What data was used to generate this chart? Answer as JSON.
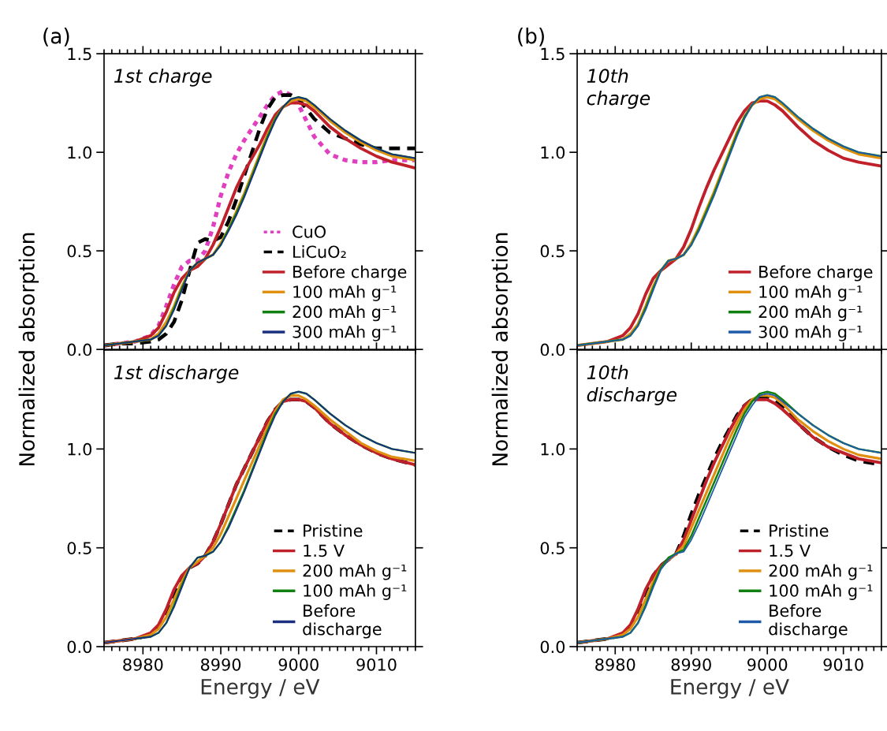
{
  "chart_data": [
    {
      "type": "line",
      "title": "(a)",
      "ylabel": "Normalized absorption",
      "annotations": [
        "1st charge"
      ],
      "legend": "bottom right",
      "tick_labels": "y",
      "xlim": [
        8975,
        9015
      ],
      "xticks": [
        8980,
        8990,
        9000,
        9010
      ],
      "ylim": [
        0,
        1.5
      ],
      "yticks": [
        {
          "value": 0,
          "label": "0.0"
        },
        {
          "value": 0.5,
          "label": "0.5"
        },
        {
          "value": 1.0,
          "label": "1.0"
        },
        {
          "value": 1.5,
          "label": "1.5"
        }
      ],
      "x": [
        8975,
        8977,
        8979,
        8981,
        8982,
        8983,
        8984,
        8985,
        8986,
        8987,
        8988,
        8989,
        8990,
        8991,
        8992,
        8993,
        8994,
        8995,
        8996,
        8997,
        8998,
        8999,
        9000,
        9001,
        9002,
        9004,
        9006,
        9008,
        9010,
        9012,
        9015
      ],
      "series": [
        {
          "name": "CuO",
          "color": "#e040c0",
          "line_style": "dotted",
          "values": [
            0.02,
            0.03,
            0.04,
            0.07,
            0.12,
            0.22,
            0.33,
            0.42,
            0.45,
            0.45,
            0.5,
            0.62,
            0.78,
            0.9,
            0.99,
            1.06,
            1.12,
            1.18,
            1.24,
            1.29,
            1.31,
            1.29,
            1.24,
            1.16,
            1.08,
            0.99,
            0.96,
            0.95,
            0.95,
            0.96,
            0.96
          ]
        },
        {
          "name": "LiCuO₂",
          "color": "#000000",
          "line_style": "dashed",
          "values": [
            0.02,
            0.03,
            0.03,
            0.04,
            0.05,
            0.08,
            0.14,
            0.25,
            0.4,
            0.54,
            0.56,
            0.55,
            0.57,
            0.65,
            0.76,
            0.88,
            1.0,
            1.12,
            1.22,
            1.28,
            1.29,
            1.29,
            1.27,
            1.22,
            1.17,
            1.1,
            1.07,
            1.04,
            1.02,
            1.02,
            1.02
          ]
        },
        {
          "name": "Before charge",
          "color": "#c0202a",
          "values": [
            0.02,
            0.03,
            0.04,
            0.07,
            0.11,
            0.19,
            0.29,
            0.36,
            0.4,
            0.42,
            0.46,
            0.53,
            0.62,
            0.72,
            0.82,
            0.9,
            0.97,
            1.04,
            1.12,
            1.19,
            1.23,
            1.25,
            1.25,
            1.24,
            1.21,
            1.13,
            1.07,
            1.02,
            0.98,
            0.95,
            0.92
          ]
        },
        {
          "name": "100 mAh g⁻¹",
          "color": "#e09010",
          "values": [
            0.02,
            0.03,
            0.04,
            0.05,
            0.08,
            0.14,
            0.22,
            0.32,
            0.4,
            0.44,
            0.46,
            0.48,
            0.54,
            0.61,
            0.7,
            0.79,
            0.89,
            0.99,
            1.09,
            1.17,
            1.23,
            1.26,
            1.27,
            1.26,
            1.23,
            1.16,
            1.1,
            1.05,
            1.01,
            0.98,
            0.96
          ]
        },
        {
          "name": "200 mAh g⁻¹",
          "color": "#108010",
          "values": [
            0.02,
            0.03,
            0.04,
            0.05,
            0.07,
            0.12,
            0.21,
            0.31,
            0.4,
            0.44,
            0.46,
            0.48,
            0.53,
            0.61,
            0.69,
            0.78,
            0.88,
            0.98,
            1.08,
            1.17,
            1.23,
            1.27,
            1.28,
            1.27,
            1.24,
            1.17,
            1.11,
            1.06,
            1.02,
            0.99,
            0.97
          ]
        },
        {
          "name": "300 mAh g⁻¹",
          "color": "#1a2f80",
          "values": [
            0.02,
            0.03,
            0.04,
            0.05,
            0.07,
            0.12,
            0.2,
            0.3,
            0.4,
            0.44,
            0.46,
            0.48,
            0.53,
            0.6,
            0.68,
            0.77,
            0.87,
            0.97,
            1.07,
            1.16,
            1.23,
            1.27,
            1.28,
            1.27,
            1.24,
            1.17,
            1.11,
            1.06,
            1.02,
            0.99,
            0.97
          ]
        }
      ]
    },
    {
      "type": "line",
      "title": "(b)",
      "ylabel": "Normalized absorption",
      "annotations": [
        "10th\ncharge"
      ],
      "legend": "bottom right",
      "tick_labels": "y",
      "xlim": [
        8975,
        9015
      ],
      "xticks": [
        8980,
        8990,
        9000,
        9010
      ],
      "ylim": [
        0,
        1.5
      ],
      "yticks": [
        {
          "value": 0,
          "label": "0.0"
        },
        {
          "value": 0.5,
          "label": "0.5"
        },
        {
          "value": 1.0,
          "label": "1.0"
        },
        {
          "value": 1.5,
          "label": "1.5"
        }
      ],
      "x": [
        8975,
        8977,
        8979,
        8981,
        8982,
        8983,
        8984,
        8985,
        8986,
        8987,
        8988,
        8989,
        8990,
        8991,
        8992,
        8993,
        8994,
        8995,
        8996,
        8997,
        8998,
        8999,
        9000,
        9001,
        9002,
        9004,
        9006,
        9008,
        9010,
        9012,
        9015
      ],
      "series": [
        {
          "name": "Before charge",
          "color": "#c0202a",
          "values": [
            0.02,
            0.03,
            0.04,
            0.07,
            0.11,
            0.18,
            0.28,
            0.36,
            0.4,
            0.43,
            0.46,
            0.52,
            0.61,
            0.72,
            0.82,
            0.91,
            0.99,
            1.07,
            1.15,
            1.21,
            1.25,
            1.26,
            1.26,
            1.24,
            1.21,
            1.13,
            1.06,
            1.01,
            0.97,
            0.95,
            0.93
          ]
        },
        {
          "name": "100 mAh g⁻¹",
          "color": "#e09010",
          "values": [
            0.02,
            0.03,
            0.04,
            0.05,
            0.08,
            0.13,
            0.22,
            0.32,
            0.4,
            0.45,
            0.46,
            0.48,
            0.54,
            0.62,
            0.71,
            0.8,
            0.9,
            1.0,
            1.1,
            1.18,
            1.24,
            1.27,
            1.28,
            1.27,
            1.24,
            1.17,
            1.11,
            1.06,
            1.02,
            0.99,
            0.97
          ]
        },
        {
          "name": "200 mAh g⁻¹",
          "color": "#108010",
          "values": [
            0.02,
            0.03,
            0.04,
            0.05,
            0.07,
            0.12,
            0.21,
            0.31,
            0.4,
            0.45,
            0.46,
            0.48,
            0.53,
            0.61,
            0.7,
            0.79,
            0.89,
            0.99,
            1.09,
            1.18,
            1.24,
            1.28,
            1.29,
            1.28,
            1.25,
            1.18,
            1.12,
            1.07,
            1.03,
            1.0,
            0.98
          ]
        },
        {
          "name": "300 mAh g⁻¹",
          "color": "#1f5aa8",
          "values": [
            0.02,
            0.03,
            0.04,
            0.05,
            0.07,
            0.12,
            0.2,
            0.3,
            0.4,
            0.45,
            0.46,
            0.48,
            0.53,
            0.6,
            0.69,
            0.78,
            0.88,
            0.98,
            1.08,
            1.17,
            1.24,
            1.28,
            1.29,
            1.28,
            1.25,
            1.18,
            1.12,
            1.07,
            1.03,
            1.0,
            0.98
          ]
        }
      ]
    },
    {
      "type": "line",
      "xlabel": "Energy / eV",
      "annotations": [
        "1st discharge"
      ],
      "legend": "bottom right",
      "xlim": [
        8975,
        9015
      ],
      "xticks": [
        8980,
        8990,
        9000,
        9010
      ],
      "ylim": [
        0,
        1.5
      ],
      "yticks": [
        {
          "value": 0,
          "label": "0.0"
        },
        {
          "value": 0.5,
          "label": "0.5"
        },
        {
          "value": 1.0,
          "label": "1.0"
        }
      ],
      "x": [
        8975,
        8977,
        8979,
        8981,
        8982,
        8983,
        8984,
        8985,
        8986,
        8987,
        8988,
        8989,
        8990,
        8991,
        8992,
        8993,
        8994,
        8995,
        8996,
        8997,
        8998,
        8999,
        9000,
        9001,
        9002,
        9004,
        9006,
        9008,
        9010,
        9012,
        9015
      ],
      "series": [
        {
          "name": "Pristine",
          "color": "#000000",
          "line_style": "dashed",
          "values": [
            0.02,
            0.03,
            0.04,
            0.06,
            0.1,
            0.17,
            0.27,
            0.35,
            0.4,
            0.42,
            0.46,
            0.53,
            0.62,
            0.72,
            0.82,
            0.9,
            0.98,
            1.06,
            1.14,
            1.2,
            1.24,
            1.25,
            1.25,
            1.24,
            1.21,
            1.13,
            1.07,
            1.02,
            0.98,
            0.95,
            0.92
          ]
        },
        {
          "name": "1.5 V",
          "color": "#c0202a",
          "values": [
            0.02,
            0.03,
            0.04,
            0.07,
            0.11,
            0.19,
            0.29,
            0.36,
            0.4,
            0.42,
            0.46,
            0.53,
            0.62,
            0.72,
            0.82,
            0.9,
            0.98,
            1.06,
            1.14,
            1.2,
            1.24,
            1.25,
            1.25,
            1.24,
            1.21,
            1.13,
            1.07,
            1.02,
            0.98,
            0.95,
            0.92
          ]
        },
        {
          "name": "200 mAh g⁻¹",
          "color": "#e09010",
          "values": [
            0.02,
            0.03,
            0.04,
            0.06,
            0.09,
            0.15,
            0.24,
            0.33,
            0.4,
            0.43,
            0.46,
            0.5,
            0.57,
            0.66,
            0.75,
            0.84,
            0.93,
            1.02,
            1.11,
            1.19,
            1.25,
            1.27,
            1.27,
            1.25,
            1.22,
            1.15,
            1.09,
            1.03,
            0.99,
            0.96,
            0.94
          ]
        },
        {
          "name": "100 mAh g⁻¹",
          "color": "#108010",
          "values": [
            null,
            null,
            0.04,
            0.05,
            0.07,
            0.12,
            0.21,
            0.31,
            0.4,
            0.45,
            0.46,
            0.48,
            0.53,
            0.61,
            0.7,
            0.79,
            0.89,
            0.99,
            1.09,
            1.18,
            1.24,
            1.28,
            1.29,
            1.28,
            1.25,
            1.18,
            1.12,
            1.07,
            1.03,
            1.0,
            0.98
          ]
        },
        {
          "name": "Before\ndischarge",
          "color": "#1a2f80",
          "values": [
            0.02,
            0.03,
            0.04,
            0.05,
            0.07,
            0.12,
            0.2,
            0.3,
            0.4,
            0.45,
            0.46,
            0.48,
            0.53,
            0.6,
            0.69,
            0.78,
            0.88,
            0.98,
            1.08,
            1.17,
            1.24,
            1.28,
            1.29,
            1.28,
            1.25,
            1.18,
            1.12,
            1.07,
            1.03,
            1.0,
            0.98
          ]
        }
      ]
    },
    {
      "type": "line",
      "xlabel": "Energy / eV",
      "annotations": [
        "10th\ndischarge"
      ],
      "legend": "bottom right",
      "xlim": [
        8975,
        9015
      ],
      "xticks": [
        8980,
        8990,
        9000,
        9010
      ],
      "ylim": [
        0,
        1.5
      ],
      "yticks": [
        {
          "value": 0,
          "label": "0.0"
        },
        {
          "value": 0.5,
          "label": "0.5"
        },
        {
          "value": 1.0,
          "label": "1.0"
        }
      ],
      "x": [
        8975,
        8977,
        8979,
        8981,
        8982,
        8983,
        8984,
        8985,
        8986,
        8987,
        8988,
        8989,
        8990,
        8991,
        8992,
        8993,
        8994,
        8995,
        8996,
        8997,
        8998,
        8999,
        9000,
        9001,
        9002,
        9004,
        9006,
        9008,
        9010,
        9012,
        9015
      ],
      "series": [
        {
          "name": "Pristine",
          "color": "#000000",
          "line_style": "dashed",
          "values": [
            0.02,
            0.03,
            0.04,
            0.06,
            0.1,
            0.18,
            0.28,
            0.36,
            0.41,
            0.44,
            0.47,
            0.56,
            0.67,
            0.77,
            0.86,
            0.95,
            1.03,
            1.1,
            1.17,
            1.22,
            1.25,
            1.26,
            1.26,
            1.24,
            1.21,
            1.13,
            1.06,
            1.01,
            0.97,
            0.94,
            0.92
          ]
        },
        {
          "name": "1.5 V",
          "color": "#c0202a",
          "values": [
            0.02,
            0.03,
            0.04,
            0.07,
            0.11,
            0.19,
            0.29,
            0.36,
            0.41,
            0.44,
            0.47,
            0.54,
            0.64,
            0.74,
            0.84,
            0.93,
            1.01,
            1.09,
            1.16,
            1.22,
            1.25,
            1.25,
            1.25,
            1.23,
            1.2,
            1.13,
            1.06,
            1.01,
            0.98,
            0.95,
            0.93
          ]
        },
        {
          "name": "200 mAh g⁻¹",
          "color": "#e09010",
          "values": [
            0.02,
            0.03,
            0.04,
            0.06,
            0.09,
            0.15,
            0.24,
            0.33,
            0.4,
            0.44,
            0.47,
            0.51,
            0.6,
            0.69,
            0.78,
            0.87,
            0.96,
            1.05,
            1.13,
            1.2,
            1.25,
            1.27,
            1.27,
            1.26,
            1.23,
            1.15,
            1.09,
            1.04,
            1.0,
            0.97,
            0.95
          ]
        },
        {
          "name": "100 mAh g⁻¹",
          "color": "#108010",
          "values": [
            0.02,
            0.03,
            0.04,
            0.05,
            0.07,
            0.12,
            0.21,
            0.31,
            0.4,
            0.45,
            0.47,
            0.49,
            0.56,
            0.65,
            0.74,
            0.83,
            0.92,
            1.01,
            1.1,
            1.18,
            1.24,
            1.28,
            1.29,
            1.28,
            1.25,
            1.18,
            1.12,
            1.07,
            1.03,
            1.0,
            0.98
          ]
        },
        {
          "name": "Before\ndischarge",
          "color": "#1f5aa8",
          "values": [
            0.02,
            0.03,
            0.04,
            0.05,
            0.07,
            0.12,
            0.2,
            0.3,
            0.39,
            0.44,
            0.47,
            0.48,
            0.54,
            0.62,
            0.71,
            0.8,
            0.89,
            0.98,
            1.07,
            1.16,
            1.22,
            1.27,
            1.28,
            1.27,
            1.24,
            1.18,
            1.12,
            1.07,
            1.03,
            1.0,
            0.98
          ]
        }
      ]
    }
  ]
}
